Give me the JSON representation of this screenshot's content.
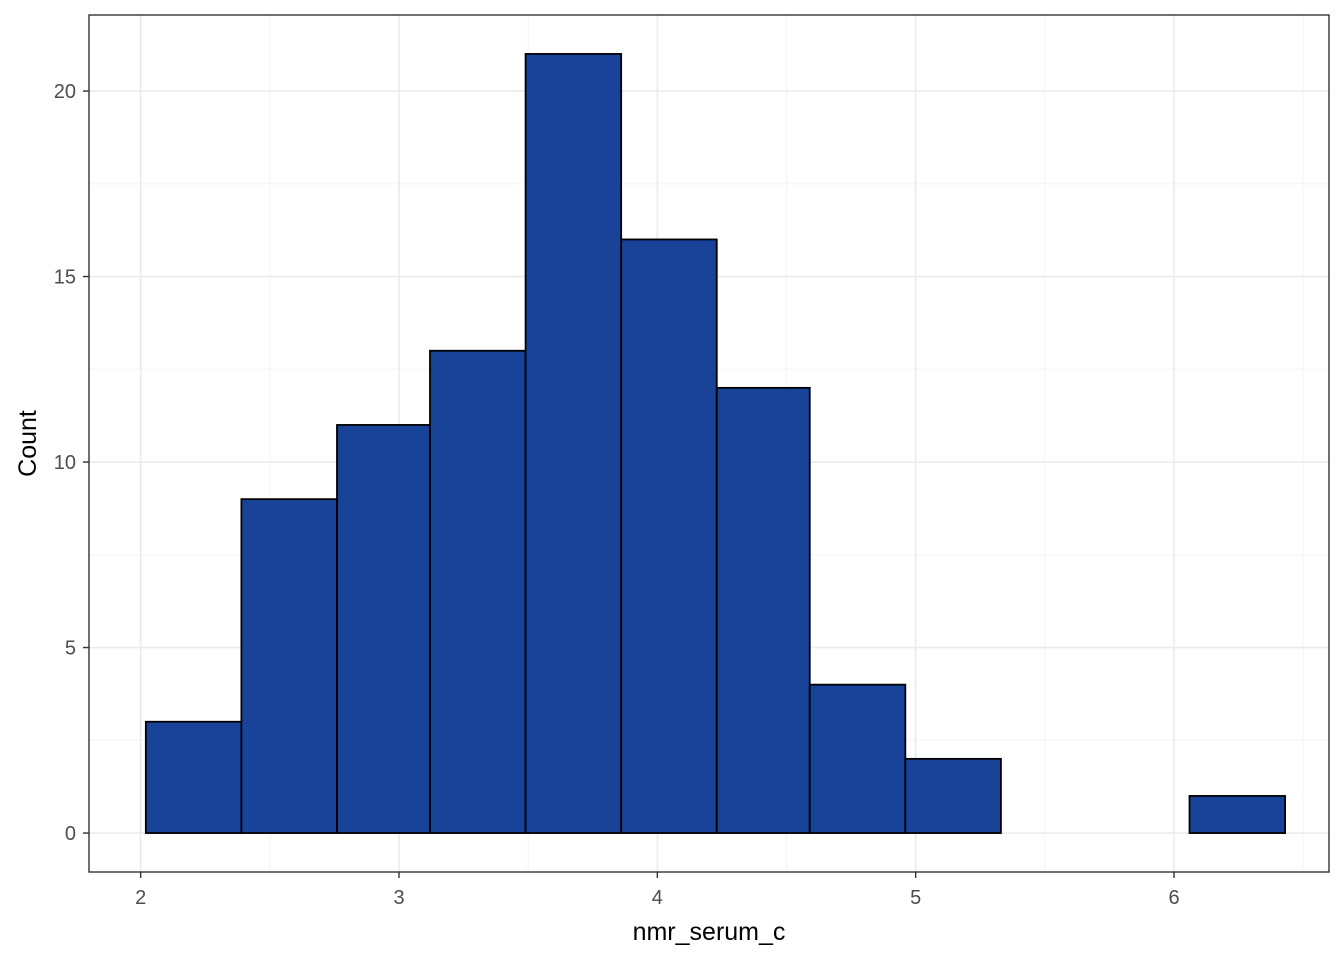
{
  "chart_data": {
    "type": "bar",
    "subtype": "histogram",
    "xlabel": "nmr_serum_c",
    "ylabel": "Count",
    "bins": [
      {
        "x0": 2.02,
        "x1": 2.39,
        "count": 3
      },
      {
        "x0": 2.39,
        "x1": 2.76,
        "count": 9
      },
      {
        "x0": 2.76,
        "x1": 3.12,
        "count": 11
      },
      {
        "x0": 3.12,
        "x1": 3.49,
        "count": 13
      },
      {
        "x0": 3.49,
        "x1": 3.86,
        "count": 21
      },
      {
        "x0": 3.86,
        "x1": 4.23,
        "count": 16
      },
      {
        "x0": 4.23,
        "x1": 4.59,
        "count": 12
      },
      {
        "x0": 4.59,
        "x1": 4.96,
        "count": 4
      },
      {
        "x0": 4.96,
        "x1": 5.33,
        "count": 2
      },
      {
        "x0": 5.33,
        "x1": 5.7,
        "count": 0
      },
      {
        "x0": 5.7,
        "x1": 6.06,
        "count": 0
      },
      {
        "x0": 6.06,
        "x1": 6.43,
        "count": 1
      }
    ],
    "xlim": [
      1.8,
      6.6
    ],
    "ylim": [
      -1.05,
      22.05
    ],
    "x_ticks": [
      "2",
      "3",
      "4",
      "5",
      "6"
    ],
    "y_ticks": [
      "0",
      "5",
      "10",
      "15",
      "20"
    ],
    "grid": true,
    "legend": "none",
    "colors": {
      "bar_fill": "#184399",
      "bar_stroke": "#000000",
      "grid_major": "#ebebeb",
      "grid_minor": "#f5f5f5",
      "panel_border": "#333333"
    }
  }
}
